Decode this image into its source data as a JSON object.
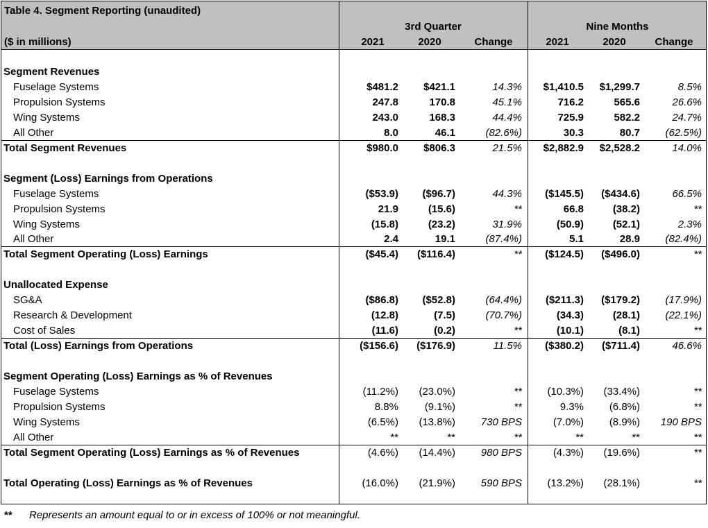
{
  "table": {
    "title": "Table 4.  Segment Reporting (unaudited)",
    "units": "($ in millions)",
    "group_quarter": "3rd Quarter",
    "group_nine": "Nine Months",
    "col_2021": "2021",
    "col_2020": "2020",
    "col_change": "Change"
  },
  "rows": [
    {
      "label": "Segment Revenues",
      "type": "section"
    },
    {
      "label": "Fuselage Systems",
      "type": "sub",
      "q21": "$481.2",
      "q20": "$421.1",
      "qc": "14.3%",
      "n21": "$1,410.5",
      "n20": "$1,299.7",
      "nc": "8.5%"
    },
    {
      "label": "Propulsion Systems",
      "type": "sub",
      "q21": "247.8",
      "q20": "170.8",
      "qc": "45.1%",
      "n21": "716.2",
      "n20": "565.6",
      "nc": "26.6%"
    },
    {
      "label": "Wing Systems",
      "type": "sub",
      "q21": "243.0",
      "q20": "168.3",
      "qc": "44.4%",
      "n21": "725.9",
      "n20": "582.2",
      "nc": "24.7%"
    },
    {
      "label": "All Other",
      "type": "sub",
      "q21": "8.0",
      "q20": "46.1",
      "qc": "(82.6%)",
      "n21": "30.3",
      "n20": "80.7",
      "nc": "(62.5%)"
    },
    {
      "label": "Total Segment Revenues",
      "type": "total",
      "q21": "$980.0",
      "q20": "$806.3",
      "qc": "21.5%",
      "n21": "$2,882.9",
      "n20": "$2,528.2",
      "nc": "14.0%"
    },
    {
      "label": "",
      "type": "blank"
    },
    {
      "label": "Segment (Loss) Earnings from Operations",
      "type": "section"
    },
    {
      "label": "Fuselage Systems",
      "type": "sub",
      "q21": "($53.9)",
      "q20": "($96.7)",
      "qc": "44.3%",
      "n21": "($145.5)",
      "n20": "($434.6)",
      "nc": "66.5%"
    },
    {
      "label": "Propulsion Systems",
      "type": "sub",
      "q21": "21.9",
      "q20": "(15.6)",
      "qc": "**",
      "n21": "66.8",
      "n20": "(38.2)",
      "nc": "**"
    },
    {
      "label": "Wing Systems",
      "type": "sub",
      "q21": "(15.8)",
      "q20": "(23.2)",
      "qc": "31.9%",
      "n21": "(50.9)",
      "n20": "(52.1)",
      "nc": "2.3%"
    },
    {
      "label": "All Other",
      "type": "sub",
      "q21": "2.4",
      "q20": "19.1",
      "qc": "(87.4%)",
      "n21": "5.1",
      "n20": "28.9",
      "nc": "(82.4%)"
    },
    {
      "label": "Total Segment Operating (Loss) Earnings",
      "type": "total",
      "q21": "($45.4)",
      "q20": "($116.4)",
      "qc": "**",
      "n21": "($124.5)",
      "n20": "($496.0)",
      "nc": "**"
    },
    {
      "label": "",
      "type": "blank"
    },
    {
      "label": "Unallocated Expense",
      "type": "section"
    },
    {
      "label": "SG&A",
      "type": "sub",
      "q21": "($86.8)",
      "q20": "($52.8)",
      "qc": "(64.4%)",
      "n21": "($211.3)",
      "n20": "($179.2)",
      "nc": "(17.9%)"
    },
    {
      "label": "Research & Development",
      "type": "sub",
      "q21": "(12.8)",
      "q20": "(7.5)",
      "qc": "(70.7%)",
      "n21": "(34.3)",
      "n20": "(28.1)",
      "nc": "(22.1%)"
    },
    {
      "label": "Cost of Sales",
      "type": "sub",
      "q21": "(11.6)",
      "q20": "(0.2)",
      "qc": "**",
      "n21": "(10.1)",
      "n20": "(8.1)",
      "nc": "**"
    },
    {
      "label": "Total (Loss) Earnings from Operations",
      "type": "total",
      "q21": "($156.6)",
      "q20": "($176.9)",
      "qc": "11.5%",
      "n21": "($380.2)",
      "n20": "($711.4)",
      "nc": "46.6%"
    },
    {
      "label": "",
      "type": "blank"
    },
    {
      "label": "Segment Operating (Loss) Earnings as % of Revenues",
      "type": "section"
    },
    {
      "label": "Fuselage Systems",
      "type": "subpct",
      "q21": "(11.2%)",
      "q20": "(23.0%)",
      "qc": "**",
      "n21": "(10.3%)",
      "n20": "(33.4%)",
      "nc": "**"
    },
    {
      "label": "Propulsion Systems",
      "type": "subpct",
      "q21": "8.8%",
      "q20": "(9.1%)",
      "qc": "**",
      "n21": "9.3%",
      "n20": "(6.8%)",
      "nc": "**"
    },
    {
      "label": "Wing Systems",
      "type": "subpct",
      "q21": "(6.5%)",
      "q20": "(13.8%)",
      "qc": "730  BPS",
      "n21": "(7.0%)",
      "n20": "(8.9%)",
      "nc": "190  BPS"
    },
    {
      "label": "All Other",
      "type": "subpct",
      "q21": "**",
      "q20": "**",
      "qc": "**",
      "n21": "**",
      "n20": "**",
      "nc": "**"
    },
    {
      "label": "Total Segment Operating (Loss) Earnings as % of Revenues",
      "type": "totalpct",
      "q21": "(4.6%)",
      "q20": "(14.4%)",
      "qc": "980  BPS",
      "n21": "(4.3%)",
      "n20": "(19.6%)",
      "nc": "**"
    },
    {
      "label": "",
      "type": "blank"
    },
    {
      "label": "Total Operating (Loss) Earnings as % of Revenues",
      "type": "finalpct",
      "q21": "(16.0%)",
      "q20": "(21.9%)",
      "qc": "590  BPS",
      "n21": "(13.2%)",
      "n20": "(28.1%)",
      "nc": "**"
    }
  ],
  "footnote": {
    "mark": "**",
    "text": "Represents an amount equal to or in excess of 100% or not meaningful."
  }
}
